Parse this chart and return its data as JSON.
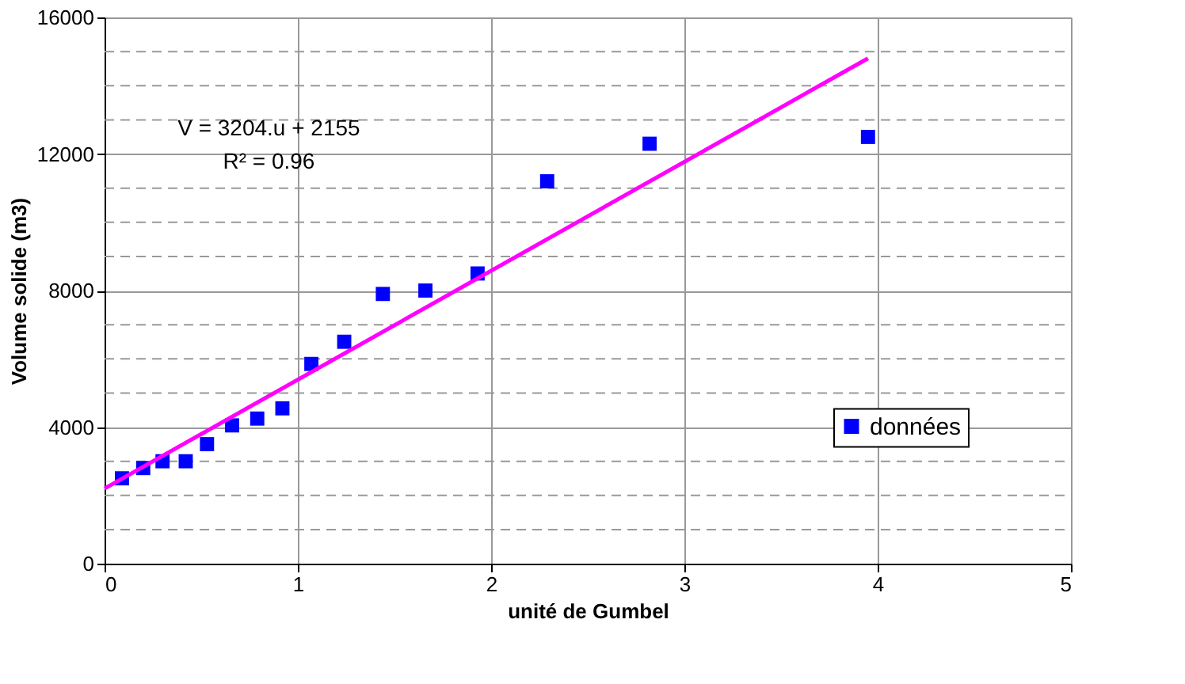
{
  "chart_data": {
    "type": "scatter",
    "xlabel": "unité de Gumbel",
    "ylabel": "Volume solide (m3)",
    "xlim": [
      0,
      5
    ],
    "xticks": [
      0,
      1,
      2,
      3,
      4,
      5
    ],
    "ylim": [
      0,
      16000
    ],
    "yticks": [
      0,
      {
        "value": 1000,
        "label": null
      },
      {
        "value": 2000,
        "label": null
      },
      {
        "value": 3000,
        "label": null
      },
      4000,
      {
        "value": 5000,
        "label": null
      },
      {
        "value": 6000,
        "label": null
      },
      {
        "value": 7000,
        "label": null
      },
      8000,
      {
        "value": 9000,
        "label": null
      },
      {
        "value": 10000,
        "label": null
      },
      {
        "value": 11000,
        "label": null
      },
      12000,
      {
        "value": 13000,
        "label": null
      },
      {
        "value": 14000,
        "label": null
      },
      {
        "value": 15000,
        "label": null
      },
      16000
    ],
    "grid": true,
    "legend": "bottom right",
    "series": [
      {
        "name": "données",
        "marker": "square",
        "color": "#0000ff",
        "x": [
          0.09,
          0.2,
          0.3,
          0.42,
          0.53,
          0.66,
          0.79,
          0.92,
          1.07,
          1.24,
          1.44,
          1.66,
          1.93,
          2.29,
          2.82,
          3.95
        ],
        "values": [
          2500,
          2800,
          3000,
          3000,
          3500,
          4050,
          4250,
          4550,
          5850,
          6500,
          7900,
          8000,
          8500,
          11200,
          12300,
          12500
        ]
      },
      {
        "type": "line",
        "color": "#ff00ff",
        "line_style": "solid",
        "marker": "none",
        "x": [
          0,
          3.95
        ],
        "values": [
          2200,
          14800
        ]
      }
    ],
    "annotations": [
      "V = 3204.u + 2155",
      "R² = 0.96"
    ]
  }
}
